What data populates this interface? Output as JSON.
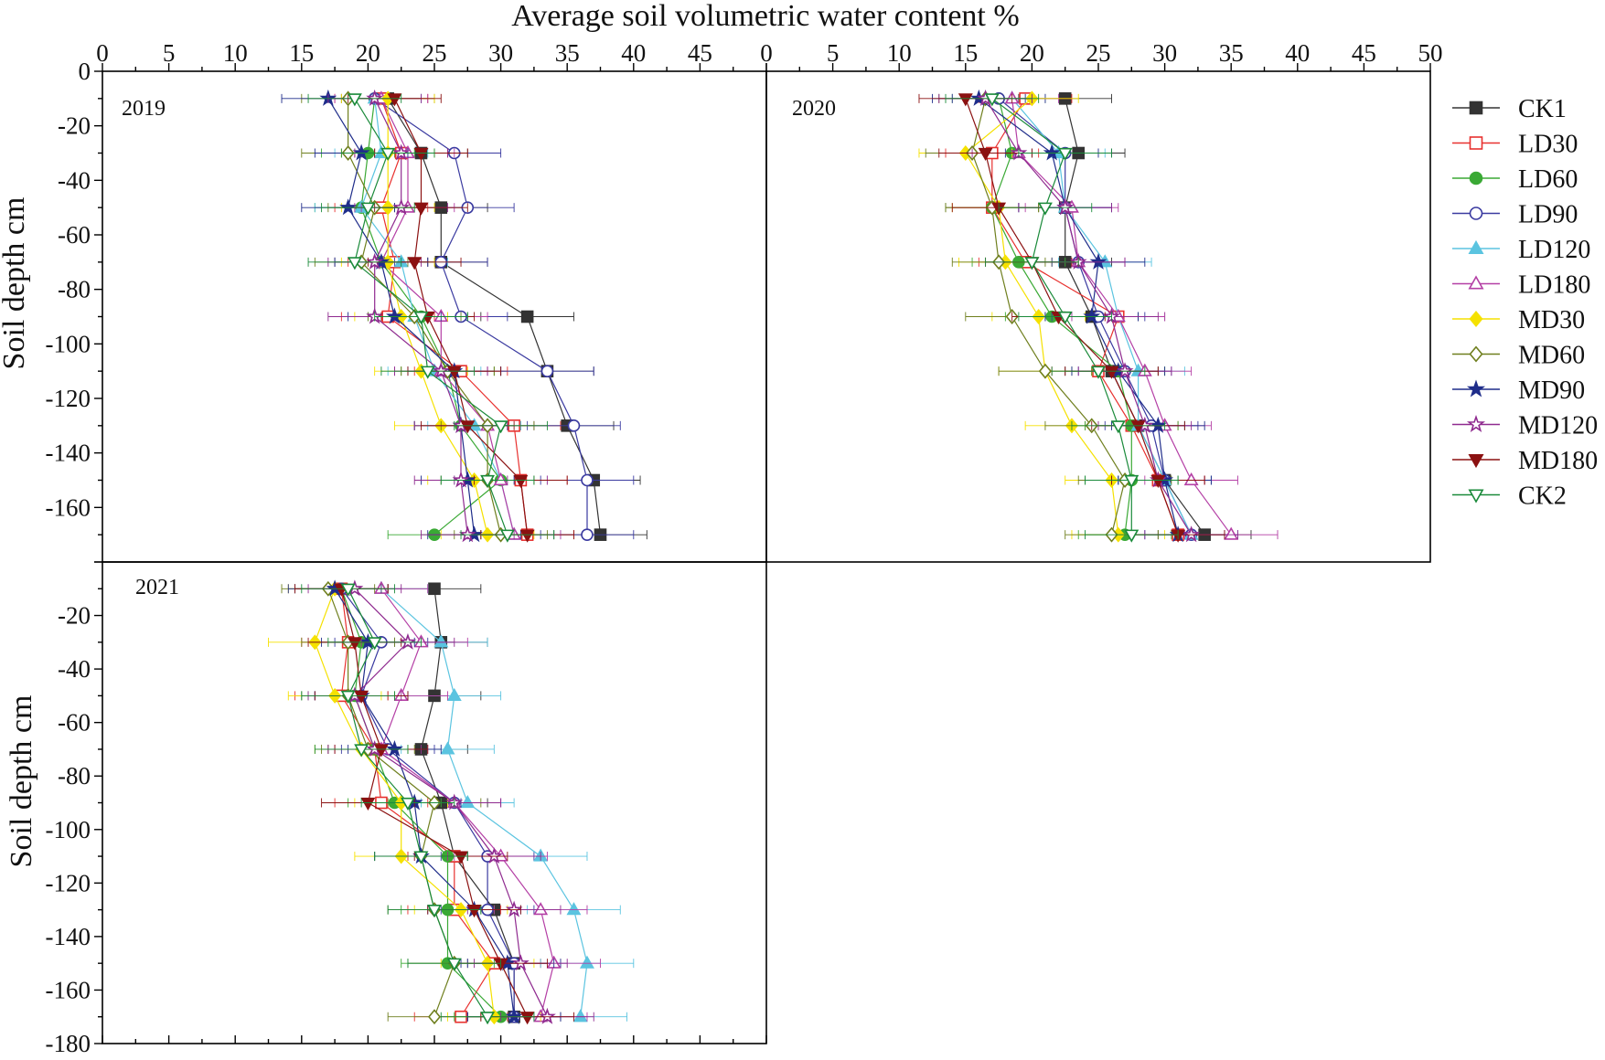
{
  "figure": {
    "top_axis_title": "Average soil volumetric water content %",
    "y_axis_title": "Soil depth cm"
  },
  "legend_entries": [
    {
      "name": "CK1",
      "color": "#333333",
      "marker": "square",
      "filled": true
    },
    {
      "name": "LD30",
      "color": "#e8312f",
      "marker": "square",
      "filled": false
    },
    {
      "name": "LD60",
      "color": "#3aa935",
      "marker": "circle",
      "filled": true
    },
    {
      "name": "LD90",
      "color": "#3a3aa0",
      "marker": "circle",
      "filled": false
    },
    {
      "name": "LD120",
      "color": "#5bc4e0",
      "marker": "triangle-up",
      "filled": true
    },
    {
      "name": "LD180",
      "color": "#b43fa5",
      "marker": "triangle-up",
      "filled": false
    },
    {
      "name": "MD30",
      "color": "#f5e100",
      "marker": "diamond",
      "filled": true
    },
    {
      "name": "MD60",
      "color": "#6f7f1e",
      "marker": "diamond",
      "filled": false
    },
    {
      "name": "MD90",
      "color": "#1f2d8a",
      "marker": "star",
      "filled": true
    },
    {
      "name": "MD120",
      "color": "#8f2a8f",
      "marker": "star",
      "filled": false
    },
    {
      "name": "MD180",
      "color": "#8b1111",
      "marker": "triangle-down",
      "filled": true
    },
    {
      "name": "CK2",
      "color": "#1a8a3a",
      "marker": "triangle-down",
      "filled": false
    }
  ],
  "chart_data": [
    {
      "type": "scatter",
      "title": "2019",
      "xlabel": "Average soil volumetric water content %",
      "ylabel": "Soil depth cm",
      "xlim": [
        0,
        50
      ],
      "ylim": [
        -180,
        0
      ],
      "x_ticks": [
        0,
        5,
        10,
        15,
        20,
        25,
        30,
        35,
        40,
        45
      ],
      "y_ticks": [
        0,
        -20,
        -40,
        -60,
        -80,
        -100,
        -120,
        -140,
        -160
      ],
      "depths": [
        -10,
        -30,
        -50,
        -70,
        -90,
        -110,
        -130,
        -150,
        -170
      ],
      "error_half_width": 3.5,
      "series": [
        {
          "name": "CK1",
          "values": [
            21.5,
            24,
            25.5,
            25.5,
            32,
            33.5,
            35,
            37,
            37.5
          ]
        },
        {
          "name": "LD30",
          "values": [
            21,
            22.5,
            21,
            22,
            21.5,
            27,
            31,
            31.5,
            32
          ]
        },
        {
          "name": "LD60",
          "values": [
            20.5,
            20,
            19.5,
            21,
            24,
            26,
            27,
            30,
            25
          ]
        },
        {
          "name": "LD90",
          "values": [
            20.5,
            26.5,
            27.5,
            25.5,
            27,
            33.5,
            35.5,
            36.5,
            36.5
          ]
        },
        {
          "name": "LD120",
          "values": [
            20.5,
            21,
            19.5,
            22.5,
            23.5,
            25,
            28,
            30,
            31
          ]
        },
        {
          "name": "LD180",
          "values": [
            21,
            23,
            23,
            21,
            25.5,
            25.5,
            29,
            30,
            31
          ]
        },
        {
          "name": "MD30",
          "values": [
            21.5,
            21.5,
            21.5,
            21.5,
            22.5,
            24,
            25.5,
            28,
            29
          ]
        },
        {
          "name": "MD60",
          "values": [
            18.5,
            18.5,
            20.5,
            19.5,
            23.5,
            26,
            29,
            29,
            30
          ]
        },
        {
          "name": "MD90",
          "values": [
            17,
            19.5,
            18.5,
            21,
            22,
            26.5,
            27,
            27.5,
            28
          ]
        },
        {
          "name": "MD120",
          "values": [
            20.5,
            22.5,
            22.5,
            20.5,
            20.5,
            25.5,
            27,
            27,
            27.5
          ]
        },
        {
          "name": "MD180",
          "values": [
            22,
            24,
            24,
            23.5,
            24.5,
            26.5,
            27.5,
            31.5,
            32
          ]
        },
        {
          "name": "CK2",
          "values": [
            19,
            21.5,
            20,
            19,
            24,
            24.5,
            30,
            29,
            30.5
          ]
        }
      ]
    },
    {
      "type": "scatter",
      "title": "2020",
      "xlabel": "Average soil volumetric water content %",
      "ylabel": "Soil depth cm",
      "xlim": [
        0,
        50
      ],
      "ylim": [
        -180,
        0
      ],
      "x_ticks": [
        0,
        5,
        10,
        15,
        20,
        25,
        30,
        35,
        40,
        45,
        50
      ],
      "y_ticks": [],
      "depths": [
        -10,
        -30,
        -50,
        -70,
        -90,
        -110,
        -130,
        -150,
        -170
      ],
      "error_half_width": 3.5,
      "series": [
        {
          "name": "CK1",
          "values": [
            22.5,
            23.5,
            22.5,
            22.5,
            24.5,
            26,
            28,
            30,
            33
          ]
        },
        {
          "name": "LD30",
          "values": [
            19.5,
            17,
            17,
            19.5,
            26.5,
            25,
            27.5,
            29.5,
            31
          ]
        },
        {
          "name": "LD60",
          "values": [
            17.5,
            18.5,
            17,
            19,
            21.5,
            26.5,
            27.5,
            27.5,
            27
          ]
        },
        {
          "name": "LD90",
          "values": [
            17.5,
            22.5,
            22.5,
            23.5,
            25,
            27,
            29,
            30,
            32
          ]
        },
        {
          "name": "LD120",
          "values": [
            18.5,
            22,
            22.5,
            25.5,
            26.5,
            28,
            28,
            30,
            32
          ]
        },
        {
          "name": "LD180",
          "values": [
            18.5,
            19,
            23,
            23.5,
            26.5,
            28.5,
            30,
            32,
            35
          ]
        },
        {
          "name": "MD30",
          "values": [
            20,
            15,
            17.5,
            18,
            20.5,
            21,
            23,
            26,
            26.5
          ]
        },
        {
          "name": "MD60",
          "values": [
            16.5,
            15.5,
            17,
            17.5,
            18.5,
            21,
            24.5,
            27,
            26
          ]
        },
        {
          "name": "MD90",
          "values": [
            16,
            21.5,
            22.5,
            25,
            24.5,
            26.5,
            29.5,
            30,
            31
          ]
        },
        {
          "name": "MD120",
          "values": [
            16.5,
            19,
            22.5,
            23.5,
            26,
            27,
            28.5,
            29.5,
            32
          ]
        },
        {
          "name": "MD180",
          "values": [
            15,
            16.5,
            17.5,
            20,
            22,
            26,
            28,
            29.5,
            31
          ]
        },
        {
          "name": "CK2",
          "values": [
            17,
            22.5,
            21,
            20,
            22.5,
            25,
            26.5,
            27.5,
            27.5
          ]
        }
      ]
    },
    {
      "type": "scatter",
      "title": "2021",
      "xlabel": "Average soil volumetric water content %",
      "ylabel": "Soil depth cm",
      "xlim": [
        0,
        50
      ],
      "ylim": [
        -180,
        0
      ],
      "x_ticks": [],
      "y_ticks": [
        -20,
        -40,
        -60,
        -80,
        -100,
        -120,
        -140,
        -160,
        -180
      ],
      "depths": [
        -10,
        -30,
        -50,
        -70,
        -90,
        -110,
        -130,
        -150,
        -170
      ],
      "error_half_width": 3.5,
      "series": [
        {
          "name": "CK1",
          "values": [
            25,
            25.5,
            25,
            24,
            25.5,
            26.5,
            29.5,
            31,
            31
          ]
        },
        {
          "name": "LD30",
          "values": [
            18,
            18.5,
            18,
            20.5,
            21,
            26.5,
            26.5,
            29.5,
            27
          ]
        },
        {
          "name": "LD60",
          "values": [
            18,
            19.5,
            19,
            20.5,
            22,
            26,
            26,
            26,
            30
          ]
        },
        {
          "name": "LD90",
          "values": [
            18,
            21,
            19.5,
            21.5,
            26.5,
            29,
            29,
            31,
            31
          ]
        },
        {
          "name": "LD120",
          "values": [
            21,
            25.5,
            26.5,
            26,
            27.5,
            33,
            35.5,
            36.5,
            36
          ]
        },
        {
          "name": "LD180",
          "values": [
            21,
            24,
            22.5,
            21,
            26.5,
            30,
            33,
            34,
            33
          ]
        },
        {
          "name": "MD30",
          "values": [
            17.5,
            16,
            17.5,
            19.5,
            22.5,
            22.5,
            27,
            29,
            29.5
          ]
        },
        {
          "name": "MD60",
          "values": [
            17,
            18.5,
            18.5,
            20,
            25,
            24,
            25,
            26.5,
            25
          ]
        },
        {
          "name": "MD90",
          "values": [
            17.5,
            20,
            19.5,
            22,
            23.5,
            24,
            28,
            30.5,
            31
          ]
        },
        {
          "name": "MD120",
          "values": [
            19,
            23,
            19,
            20.5,
            26.5,
            29.5,
            31,
            31.5,
            33.5
          ]
        },
        {
          "name": "MD180",
          "values": [
            18,
            19,
            19.5,
            21,
            20,
            27,
            28,
            30,
            32
          ]
        },
        {
          "name": "CK2",
          "values": [
            18.5,
            20.5,
            18.5,
            19.5,
            23,
            24,
            25,
            26.5,
            29
          ]
        }
      ]
    }
  ]
}
